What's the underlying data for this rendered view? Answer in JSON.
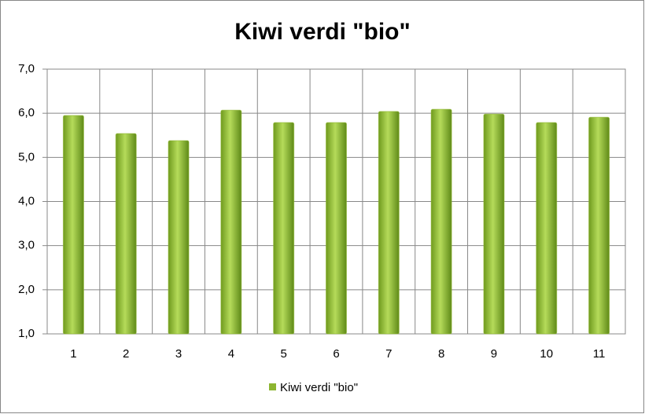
{
  "chart_data": {
    "type": "bar",
    "title": "Kiwi verdi \"bio\"",
    "categories": [
      "1",
      "2",
      "3",
      "4",
      "5",
      "6",
      "7",
      "8",
      "9",
      "10",
      "11"
    ],
    "series": [
      {
        "name": "Kiwi verdi \"bio\"",
        "color": "#8db531",
        "values": [
          5.95,
          5.54,
          5.38,
          6.07,
          5.79,
          5.79,
          6.04,
          6.09,
          5.98,
          5.79,
          5.91
        ]
      }
    ],
    "ylim": [
      1,
      7
    ],
    "yticks": [
      {
        "value": 1,
        "label": "1,0"
      },
      {
        "value": 2,
        "label": "2,0"
      },
      {
        "value": 3,
        "label": "3,0"
      },
      {
        "value": 4,
        "label": "4,0"
      },
      {
        "value": 5,
        "label": "5,0"
      },
      {
        "value": 6,
        "label": "6,0"
      },
      {
        "value": 7,
        "label": "7,0"
      }
    ],
    "grid": true,
    "legend": "bottom"
  }
}
